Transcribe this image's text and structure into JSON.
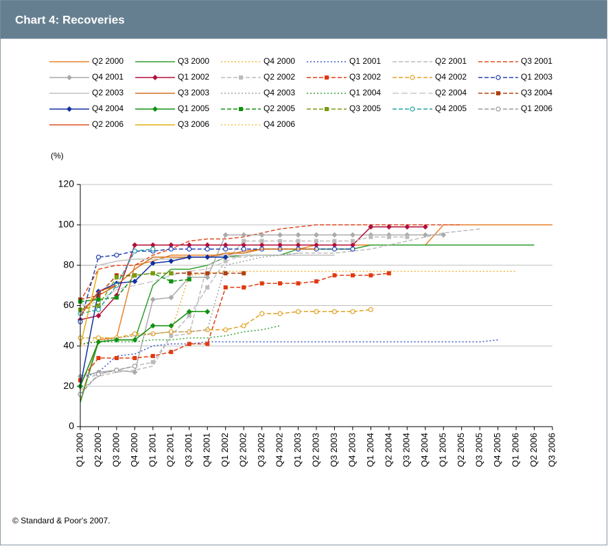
{
  "chart_data": {
    "type": "line",
    "title": "Chart 4: Recoveries",
    "y_label": "(%)",
    "footnote": "© Standard & Poor's 2007.",
    "categories": [
      "Q1 2000",
      "Q2 2000",
      "Q3 2000",
      "Q4 2000",
      "Q1 2001",
      "Q2 2001",
      "Q3 2001",
      "Q4 2001",
      "Q1 2002",
      "Q2 2002",
      "Q3 2002",
      "Q4 2002",
      "Q1 2003",
      "Q2 2003",
      "Q3 2003",
      "Q4 2003",
      "Q1 2004",
      "Q2 2004",
      "Q3 2004",
      "Q4 2004",
      "Q1 2005",
      "Q2 2005",
      "Q3 2005",
      "Q4 2005",
      "Q1 2006",
      "Q2 2006",
      "Q3 2006"
    ],
    "ylim": [
      0,
      120
    ],
    "yticks": [
      0,
      20,
      40,
      60,
      80,
      100,
      120
    ],
    "grid": true,
    "series": [
      {
        "name": "Q2 2000",
        "color": "#e8822a",
        "dash": "solid",
        "marker": "none",
        "values": [
          13,
          43,
          44,
          80,
          82,
          85,
          85,
          85,
          85,
          87,
          88,
          88,
          88,
          90,
          90,
          90,
          90,
          90,
          90,
          90,
          100,
          100,
          100,
          100,
          100,
          100,
          100
        ]
      },
      {
        "name": "Q3 2000",
        "color": "#2e9e2e",
        "dash": "solid",
        "marker": "none",
        "values": [
          12,
          42,
          43,
          43,
          70,
          78,
          78,
          80,
          84,
          85,
          85,
          85,
          88,
          88,
          88,
          88,
          90,
          90,
          90,
          90,
          90,
          90,
          90,
          90,
          90,
          90,
          null
        ]
      },
      {
        "name": "Q4 2000",
        "color": "#f0b030",
        "dash": "dotted",
        "marker": "none",
        "values": [
          40,
          44,
          44,
          45,
          46,
          47,
          75,
          76,
          77,
          77,
          77,
          77,
          77,
          77,
          77,
          77,
          77,
          77,
          77,
          77,
          77,
          77,
          77,
          77,
          77,
          null,
          null
        ]
      },
      {
        "name": "Q1 2001",
        "color": "#3355cc",
        "dash": "dotted",
        "marker": "none",
        "values": [
          24,
          27,
          35,
          36,
          40,
          41,
          41,
          42,
          42,
          42,
          42,
          42,
          42,
          42,
          42,
          42,
          42,
          42,
          42,
          42,
          42,
          42,
          42,
          43,
          null,
          null,
          null
        ]
      },
      {
        "name": "Q2 2001",
        "color": "#bbbbbb",
        "dash": "dashed",
        "marker": "none",
        "values": [
          18,
          25,
          27,
          28,
          30,
          45,
          46,
          80,
          84,
          84,
          85,
          85,
          86,
          86,
          86,
          87,
          88,
          90,
          92,
          94,
          96,
          97,
          98,
          null,
          null,
          null,
          null
        ]
      },
      {
        "name": "Q3 2001",
        "color": "#e04a20",
        "dash": "dashed",
        "marker": "none",
        "values": [
          62,
          78,
          80,
          80,
          85,
          88,
          92,
          93,
          93,
          94,
          96,
          98,
          99,
          100,
          100,
          100,
          100,
          100,
          100,
          100,
          100,
          100,
          null,
          null,
          null,
          null,
          null
        ]
      },
      {
        "name": "Q4 2001",
        "color": "#aaaaaa",
        "dash": "solid",
        "marker": "diamond",
        "values": [
          25,
          27,
          28,
          27,
          63,
          64,
          74,
          74,
          95,
          95,
          95,
          95,
          95,
          95,
          95,
          95,
          95,
          95,
          95,
          95,
          95,
          null,
          null,
          null,
          null,
          null,
          null
        ]
      },
      {
        "name": "Q1 2002",
        "color": "#b0103a",
        "dash": "solid",
        "marker": "diamond",
        "values": [
          53,
          55,
          65,
          90,
          90,
          90,
          90,
          90,
          90,
          90,
          90,
          90,
          90,
          90,
          90,
          90,
          99,
          99,
          99,
          99,
          null,
          null,
          null,
          null,
          null,
          null,
          null
        ]
      },
      {
        "name": "Q2 2002",
        "color": "#bbbbbb",
        "dash": "dashed",
        "marker": "square",
        "values": [
          23,
          26,
          28,
          30,
          32,
          45,
          55,
          69,
          82,
          92,
          92,
          92,
          92,
          92,
          92,
          92,
          94,
          94,
          94,
          null,
          null,
          null,
          null,
          null,
          null,
          null,
          null
        ]
      },
      {
        "name": "Q3 2002",
        "color": "#e03a10",
        "dash": "dashed",
        "marker": "square",
        "values": [
          23,
          34,
          34,
          34,
          35,
          37,
          41,
          41,
          69,
          69,
          71,
          71,
          71,
          72,
          75,
          75,
          75,
          76,
          null,
          null,
          null,
          null,
          null,
          null,
          null,
          null,
          null
        ]
      },
      {
        "name": "Q4 2002",
        "color": "#e0a020",
        "dash": "dashed",
        "marker": "circle",
        "values": [
          44,
          44,
          44,
          46,
          46,
          47,
          47,
          48,
          48,
          50,
          56,
          56,
          57,
          57,
          57,
          57,
          58,
          null,
          null,
          null,
          null,
          null,
          null,
          null,
          null,
          null,
          null
        ]
      },
      {
        "name": "Q1 2003",
        "color": "#2040b0",
        "dash": "dashed",
        "marker": "circle",
        "values": [
          52,
          84,
          85,
          87,
          87,
          88,
          88,
          88,
          88,
          88,
          88,
          88,
          88,
          88,
          88,
          88,
          null,
          null,
          null,
          null,
          null,
          null,
          null,
          null,
          null,
          null,
          null
        ]
      },
      {
        "name": "Q2 2003",
        "color": "#c0c0c0",
        "dash": "solid",
        "marker": "none",
        "values": [
          80,
          80,
          82,
          83,
          83,
          83,
          84,
          84,
          85,
          85,
          85,
          85,
          85,
          85,
          85,
          null,
          null,
          null,
          null,
          null,
          null,
          null,
          null,
          null,
          null,
          null,
          null
        ]
      },
      {
        "name": "Q3 2003",
        "color": "#d07020",
        "dash": "solid",
        "marker": "none",
        "values": [
          57,
          65,
          70,
          78,
          84,
          84,
          84,
          84,
          86,
          86,
          88,
          88,
          88,
          88,
          null,
          null,
          null,
          null,
          null,
          null,
          null,
          null,
          null,
          null,
          null,
          null,
          null
        ]
      },
      {
        "name": "Q4 2003",
        "color": "#a0a0a0",
        "dash": "dotted",
        "marker": "none",
        "values": [
          41,
          42,
          44,
          45,
          46,
          47,
          47,
          48,
          80,
          82,
          84,
          85,
          86,
          null,
          null,
          null,
          null,
          null,
          null,
          null,
          null,
          null,
          null,
          null,
          null,
          null,
          null
        ]
      },
      {
        "name": "Q1 2004",
        "color": "#30a030",
        "dash": "dotted",
        "marker": "none",
        "values": [
          41,
          42,
          42,
          42,
          43,
          43,
          44,
          44,
          45,
          47,
          48,
          50,
          null,
          null,
          null,
          null,
          null,
          null,
          null,
          null,
          null,
          null,
          null,
          null,
          null,
          null,
          null
        ]
      },
      {
        "name": "Q2 2004",
        "color": "#c8c8c8",
        "dash": "longdash",
        "marker": "none",
        "values": [
          60,
          62,
          68,
          70,
          72,
          75,
          77,
          78,
          82,
          85,
          85,
          null,
          null,
          null,
          null,
          null,
          null,
          null,
          null,
          null,
          null,
          null,
          null,
          null,
          null,
          null,
          null
        ]
      },
      {
        "name": "Q3 2004",
        "color": "#b04010",
        "dash": "dashed",
        "marker": "square",
        "values": [
          63,
          65,
          75,
          75,
          76,
          76,
          76,
          76,
          76,
          76,
          null,
          null,
          null,
          null,
          null,
          null,
          null,
          null,
          null,
          null,
          null,
          null,
          null,
          null,
          null,
          null,
          null
        ]
      },
      {
        "name": "Q4 2004",
        "color": "#1030a0",
        "dash": "solid",
        "marker": "diamond",
        "values": [
          20,
          67,
          71,
          72,
          81,
          82,
          84,
          84,
          84,
          null,
          null,
          null,
          null,
          null,
          null,
          null,
          null,
          null,
          null,
          null,
          null,
          null,
          null,
          null,
          null,
          null,
          null
        ]
      },
      {
        "name": "Q1 2005",
        "color": "#109010",
        "dash": "solid",
        "marker": "diamond",
        "values": [
          20,
          42,
          43,
          43,
          50,
          50,
          57,
          57,
          null,
          null,
          null,
          null,
          null,
          null,
          null,
          null,
          null,
          null,
          null,
          null,
          null,
          null,
          null,
          null,
          null,
          null,
          null
        ]
      },
      {
        "name": "Q2 2005",
        "color": "#109010",
        "dash": "dashed",
        "marker": "square",
        "values": [
          62,
          63,
          64,
          75,
          76,
          72,
          73,
          null,
          null,
          null,
          null,
          null,
          null,
          null,
          null,
          null,
          null,
          null,
          null,
          null,
          null,
          null,
          null,
          null,
          null,
          null,
          null
        ]
      },
      {
        "name": "Q3 2005",
        "color": "#7a9a10",
        "dash": "dashed",
        "marker": "square",
        "values": [
          58,
          60,
          74,
          75,
          76,
          76,
          null,
          null,
          null,
          null,
          null,
          null,
          null,
          null,
          null,
          null,
          null,
          null,
          null,
          null,
          null,
          null,
          null,
          null,
          null,
          null,
          null
        ]
      },
      {
        "name": "Q4 2005",
        "color": "#20a0a0",
        "dash": "dashed",
        "marker": "circle",
        "values": [
          56,
          58,
          70,
          87,
          88,
          null,
          null,
          null,
          null,
          null,
          null,
          null,
          null,
          null,
          null,
          null,
          null,
          null,
          null,
          null,
          null,
          null,
          null,
          null,
          null,
          null,
          null
        ]
      },
      {
        "name": "Q1 2006",
        "color": "#999999",
        "dash": "dashed",
        "marker": "circle",
        "values": [
          16,
          26,
          28,
          30,
          null,
          null,
          null,
          null,
          null,
          null,
          null,
          null,
          null,
          null,
          null,
          null,
          null,
          null,
          null,
          null,
          null,
          null,
          null,
          null,
          null,
          null,
          null
        ]
      },
      {
        "name": "Q2 2006",
        "color": "#e05020",
        "dash": "solid",
        "marker": "none",
        "values": [
          55,
          67,
          70,
          null,
          null,
          null,
          null,
          null,
          null,
          null,
          null,
          null,
          null,
          null,
          null,
          null,
          null,
          null,
          null,
          null,
          null,
          null,
          null,
          null,
          null,
          null,
          null
        ]
      },
      {
        "name": "Q3 2006",
        "color": "#e0b010",
        "dash": "solid",
        "marker": "none",
        "values": [
          40,
          78,
          null,
          null,
          null,
          null,
          null,
          null,
          null,
          null,
          null,
          null,
          null,
          null,
          null,
          null,
          null,
          null,
          null,
          null,
          null,
          null,
          null,
          null,
          null,
          null,
          null
        ]
      },
      {
        "name": "Q4 2006",
        "color": "#f0c040",
        "dash": "dotted",
        "marker": "none",
        "values": [
          80,
          null,
          null,
          null,
          null,
          null,
          null,
          null,
          null,
          null,
          null,
          null,
          null,
          null,
          null,
          null,
          null,
          null,
          null,
          null,
          null,
          null,
          null,
          null,
          null,
          null,
          null
        ]
      }
    ]
  }
}
